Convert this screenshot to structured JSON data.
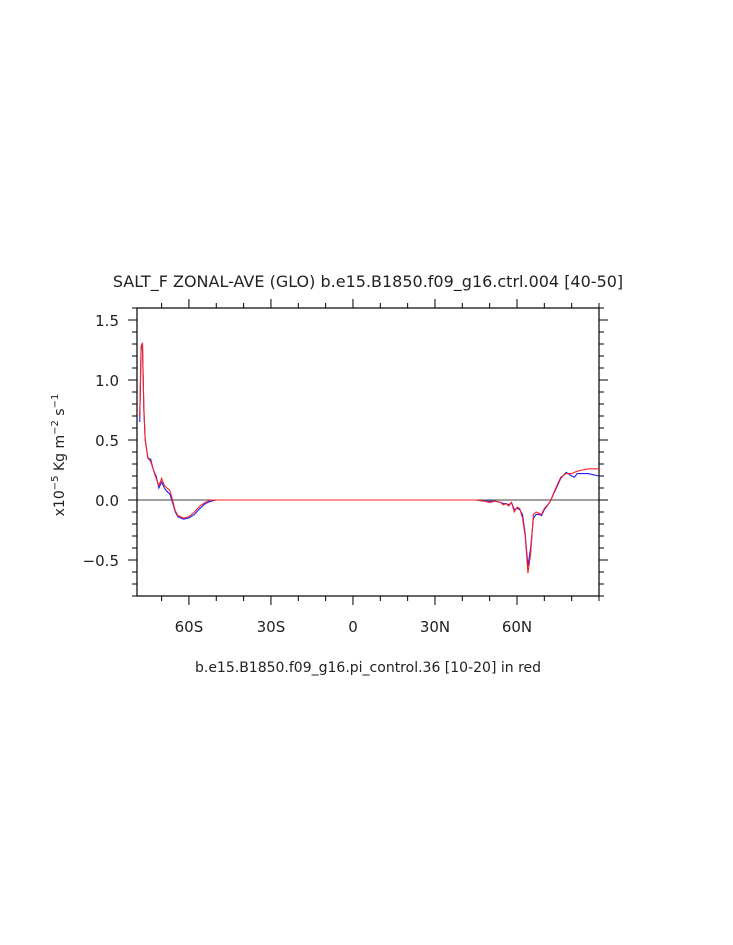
{
  "chart_data": {
    "type": "line",
    "title": "SALT_F ZONAL-AVE (GLO) b.e15.B1850.f09_g16.ctrl.004 [40-50]",
    "subtitle": "b.e15.B1850.f09_g16.pi_control.36 [10-20] in red",
    "ylabel": "x10-5 Kg m-2 s-1",
    "ylabel_parts": {
      "base": "x10",
      "exp1": "−5",
      "mid": " Kg m",
      "exp2": "−2",
      "mid2": " s",
      "exp3": "−1"
    },
    "xlim": [
      -79,
      90
    ],
    "ylim": [
      -0.8,
      1.6
    ],
    "x_ticks": [
      -60,
      -30,
      0,
      30,
      60
    ],
    "x_tick_labels": [
      "60S",
      "30S",
      "0",
      "30N",
      "60N"
    ],
    "y_ticks": [
      -0.5,
      0.0,
      0.5,
      1.0,
      1.5
    ],
    "y_tick_labels": [
      "−0.5",
      "0.0",
      "0.5",
      "1.0",
      "1.5"
    ],
    "zero_line": true,
    "series": [
      {
        "color": "#2020ff",
        "x": [
          -78,
          -77.5,
          -77,
          -76.5,
          -76,
          -75,
          -74,
          -73,
          -72,
          -71,
          -70,
          -69,
          -68,
          -67,
          -66,
          -65,
          -64,
          -62,
          -60,
          -58,
          -56,
          -54,
          -52,
          -50,
          -45,
          0,
          45,
          48,
          50,
          52,
          54,
          55,
          56,
          57,
          58,
          59,
          60,
          61,
          62,
          63,
          64,
          65,
          66,
          67,
          68,
          69,
          70,
          72,
          74,
          76,
          78,
          80,
          81,
          82,
          84,
          86,
          88,
          90
        ],
        "y": [
          0.65,
          1.25,
          1.3,
          0.75,
          0.5,
          0.35,
          0.34,
          0.25,
          0.2,
          0.1,
          0.15,
          0.1,
          0.07,
          0.05,
          -0.02,
          -0.1,
          -0.14,
          -0.16,
          -0.15,
          -0.12,
          -0.07,
          -0.03,
          -0.01,
          0.0,
          0.0,
          0.0,
          0.0,
          -0.01,
          -0.01,
          -0.01,
          -0.02,
          -0.03,
          -0.03,
          -0.04,
          -0.02,
          -0.08,
          -0.07,
          -0.08,
          -0.12,
          -0.28,
          -0.55,
          -0.4,
          -0.15,
          -0.12,
          -0.12,
          -0.13,
          -0.08,
          -0.02,
          0.08,
          0.18,
          0.23,
          0.2,
          0.19,
          0.22,
          0.22,
          0.22,
          0.21,
          0.2
        ]
      },
      {
        "color": "#ff2020",
        "x": [
          -78,
          -77.5,
          -77,
          -76.5,
          -76,
          -75,
          -74,
          -73,
          -72,
          -71,
          -70,
          -69,
          -68,
          -67,
          -66,
          -65,
          -64,
          -62,
          -60,
          -58,
          -56,
          -54,
          -52,
          -50,
          -45,
          0,
          45,
          48,
          50,
          52,
          54,
          55,
          56,
          57,
          58,
          59,
          60,
          61,
          62,
          63,
          64,
          65,
          66,
          67,
          68,
          69,
          70,
          72,
          74,
          76,
          78,
          80,
          81,
          82,
          84,
          86,
          88,
          90
        ],
        "y": [
          0.7,
          1.28,
          1.31,
          0.78,
          0.5,
          0.35,
          0.32,
          0.25,
          0.18,
          0.12,
          0.18,
          0.12,
          0.1,
          0.08,
          0.0,
          -0.09,
          -0.13,
          -0.15,
          -0.14,
          -0.1,
          -0.05,
          -0.02,
          0.0,
          0.0,
          0.0,
          0.0,
          0.0,
          -0.01,
          -0.02,
          -0.01,
          -0.02,
          -0.04,
          -0.03,
          -0.05,
          -0.02,
          -0.1,
          -0.06,
          -0.07,
          -0.15,
          -0.3,
          -0.61,
          -0.45,
          -0.12,
          -0.1,
          -0.11,
          -0.12,
          -0.07,
          -0.02,
          0.09,
          0.19,
          0.22,
          0.22,
          0.23,
          0.24,
          0.25,
          0.26,
          0.26,
          0.26
        ]
      }
    ]
  }
}
